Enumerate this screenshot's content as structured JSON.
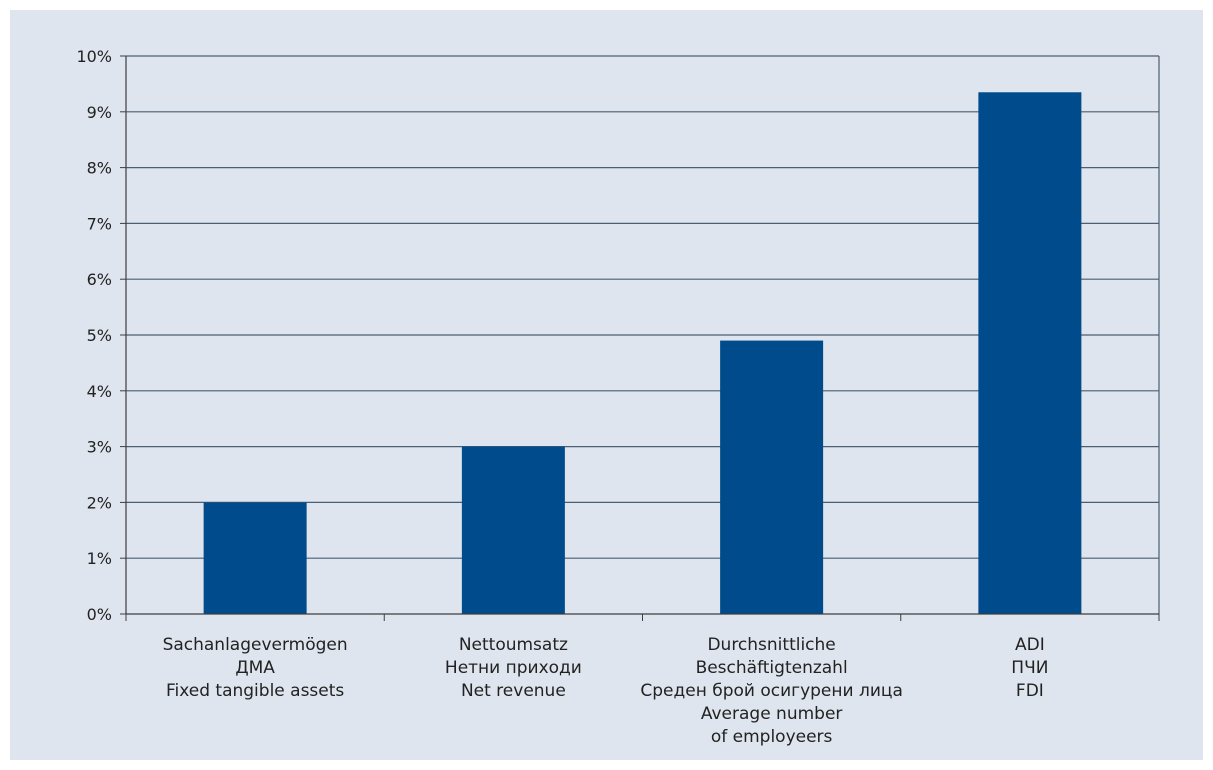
{
  "chart_data": {
    "type": "bar",
    "categories": [
      [
        "Sachanlagevermögen",
        "ДМА",
        "Fixed tangible assets"
      ],
      [
        "Nettoumsatz",
        "Нетни приходи",
        "Net revenue"
      ],
      [
        "Durchsnittliche",
        "Beschäftigtenzahl",
        "Среден брой осигурени лица",
        "Average number",
        "of employeers"
      ],
      [
        "ADI",
        "ПЧИ",
        "FDI"
      ]
    ],
    "values": [
      2.0,
      3.0,
      4.9,
      9.35
    ],
    "ylim": [
      0,
      10
    ],
    "yticks": [
      "0%",
      "1%",
      "2%",
      "3%",
      "4%",
      "5%",
      "6%",
      "7%",
      "8%",
      "9%",
      "10%"
    ],
    "grid": true,
    "colors": {
      "bar": "#004b8b",
      "grid": "#4a5f75",
      "axis": "#3d3d3d",
      "background": "#dfe5ee"
    }
  }
}
